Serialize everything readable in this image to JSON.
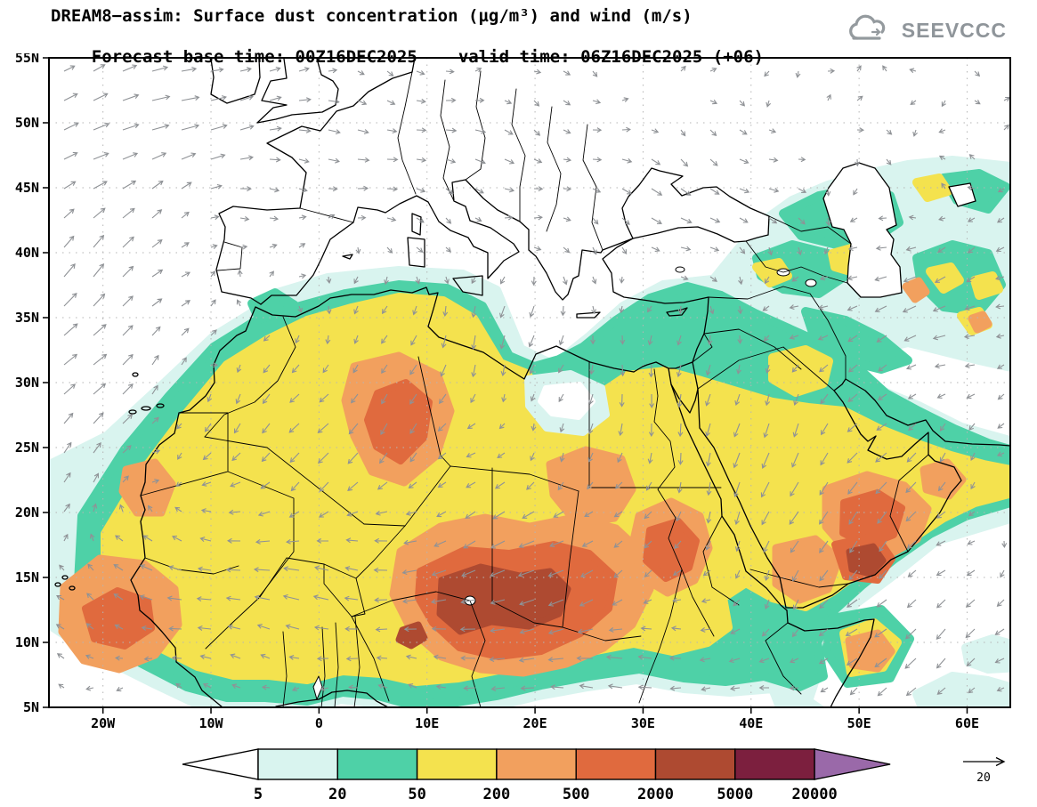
{
  "header": {
    "title": "DREAM8−assim: Surface dust concentration (µg/m³) and wind (m/s)",
    "forecast_base": "Forecast base time: 00Z16DEC2025",
    "valid_time": "valid time: 06Z16DEC2025 (+06)",
    "logo_text": "SEEVCCC"
  },
  "map": {
    "x_ticks": [
      {
        "label": "20W",
        "deg": -20
      },
      {
        "label": "10W",
        "deg": -10
      },
      {
        "label": "0",
        "deg": 0
      },
      {
        "label": "10E",
        "deg": 10
      },
      {
        "label": "20E",
        "deg": 20
      },
      {
        "label": "30E",
        "deg": 30
      },
      {
        "label": "40E",
        "deg": 40
      },
      {
        "label": "50E",
        "deg": 50
      },
      {
        "label": "60E",
        "deg": 60
      }
    ],
    "y_ticks": [
      {
        "label": "55N",
        "deg": 55
      },
      {
        "label": "50N",
        "deg": 50
      },
      {
        "label": "45N",
        "deg": 45
      },
      {
        "label": "40N",
        "deg": 40
      },
      {
        "label": "35N",
        "deg": 35
      },
      {
        "label": "30N",
        "deg": 30
      },
      {
        "label": "25N",
        "deg": 25
      },
      {
        "label": "20N",
        "deg": 20
      },
      {
        "label": "15N",
        "deg": 15
      },
      {
        "label": "10N",
        "deg": 10
      },
      {
        "label": "5N",
        "deg": 5
      }
    ],
    "lon_gridlines": [
      -20,
      -10,
      0,
      10,
      20,
      30,
      40,
      50,
      60
    ],
    "lat_gridlines": [
      10,
      15,
      20,
      25,
      30,
      35,
      40,
      45,
      50
    ]
  },
  "colorbar": {
    "labels": [
      "5",
      "20",
      "50",
      "200",
      "500",
      "2000",
      "5000",
      "20000"
    ],
    "colors": [
      "#ffffff",
      "#d9f4ef",
      "#4ed1a7",
      "#f4e24e",
      "#f2a05e",
      "#e06a3e",
      "#ae4a31",
      "#7c1f3e",
      "#9a69a9"
    ]
  },
  "wind_ref": {
    "label": "20"
  },
  "chart_data": {
    "type": "heatmap",
    "title": "DREAM8−assim: Surface dust concentration (µg/m³) and wind (m/s)",
    "variable": "surface dust concentration",
    "units": "µg/m³",
    "wind_units": "m/s",
    "forecast_base_time": "00Z16DEC2025",
    "valid_time": "06Z16DEC2025",
    "forecast_hour": 6,
    "lon_range_deg": [
      -25,
      64
    ],
    "lat_range_deg": [
      5,
      55
    ],
    "x_tick_labels": [
      "20W",
      "10W",
      "0",
      "10E",
      "20E",
      "30E",
      "40E",
      "50E",
      "60E"
    ],
    "y_tick_labels": [
      "55N",
      "50N",
      "45N",
      "40N",
      "35N",
      "30N",
      "25N",
      "20N",
      "15N",
      "10N",
      "5N"
    ],
    "contour_levels_ugm3": [
      5,
      20,
      50,
      200,
      500,
      2000,
      5000,
      20000
    ],
    "level_colors": [
      "#ffffff",
      "#d9f4ef",
      "#4ed1a7",
      "#f4e24e",
      "#f2a05e",
      "#e06a3e",
      "#ae4a31",
      "#7c1f3e",
      "#9a69a9"
    ],
    "wind_reference_ms": 20,
    "notable_features": [
      "Dust maximum 2000-5000 µg/m³ over the Bodele/Chad region (~14-19N, 14-22E)",
      "500-2000 µg/m³ plumes over central Algeria, Chad/Sudan, western Sahel and southern Arabia",
      "50-200 µg/m³ covering most of North Africa, the Sahel and the Arabian Peninsula",
      "20-50 µg/m³ fringes along NW Africa, eastern Mediterranean, Caucasus/Caspian and Horn of Africa",
      "Air below 5 µg/m³ over most of Europe and the North Atlantic"
    ]
  }
}
